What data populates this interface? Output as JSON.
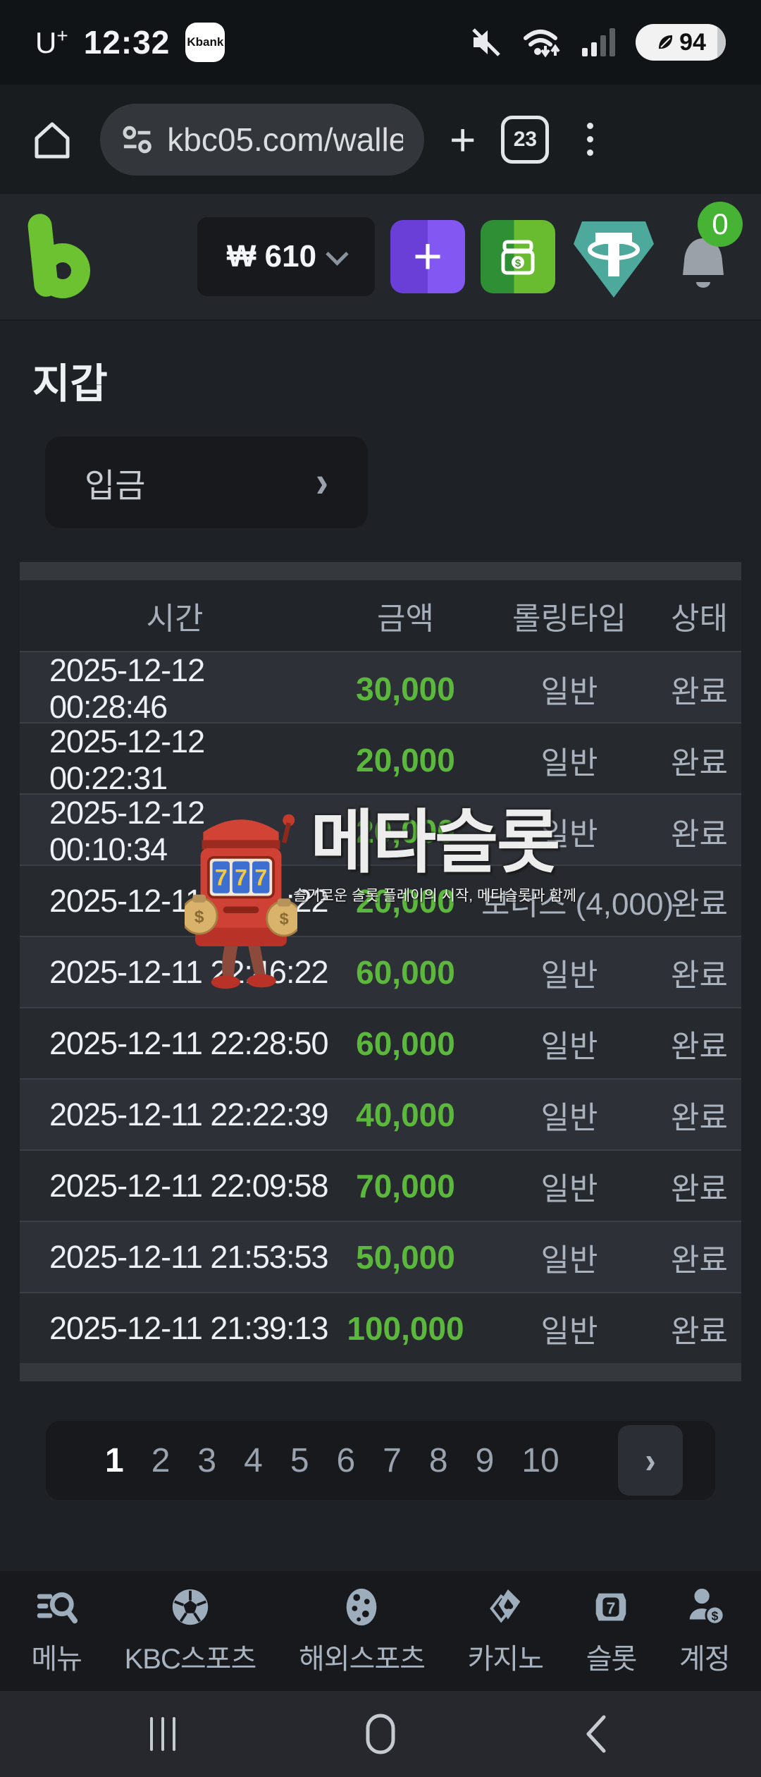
{
  "status_bar": {
    "carrier": "U+",
    "time": "12:32",
    "app_badge": "Kbank",
    "battery_percent": "94"
  },
  "browser": {
    "url": "kbc05.com/walle",
    "tab_count": "23",
    "new_tab_glyph": "+"
  },
  "site_header": {
    "balance_amount": "₩ 610",
    "plus_button_glyph": "+",
    "notification_badge": "0"
  },
  "wallet": {
    "page_title": "지갑",
    "deposit_label": "입금",
    "deposit_chevron": "›"
  },
  "table": {
    "headers": [
      "시간",
      "금액",
      "롤링타입",
      "상태"
    ],
    "rows": [
      {
        "time": "2025-12-12 00:28:46",
        "amount": "30,000",
        "type": "일반",
        "status": "완료"
      },
      {
        "time": "2025-12-12 00:22:31",
        "amount": "20,000",
        "type": "일반",
        "status": "완료"
      },
      {
        "time": "2025-12-12 00:10:34",
        "amount": "20,000",
        "type": "일반",
        "status": "완료"
      },
      {
        "time": "2025-12-11 23:01:22",
        "amount": "20,000",
        "type": "보너스 (4,000)",
        "status": "완료"
      },
      {
        "time": "2025-12-11 22:46:22",
        "amount": "60,000",
        "type": "일반",
        "status": "완료"
      },
      {
        "time": "2025-12-11 22:28:50",
        "amount": "60,000",
        "type": "일반",
        "status": "완료"
      },
      {
        "time": "2025-12-11 22:22:39",
        "amount": "40,000",
        "type": "일반",
        "status": "완료"
      },
      {
        "time": "2025-12-11 22:09:58",
        "amount": "70,000",
        "type": "일반",
        "status": "완료"
      },
      {
        "time": "2025-12-11 21:53:53",
        "amount": "50,000",
        "type": "일반",
        "status": "완료"
      },
      {
        "time": "2025-12-11 21:39:13",
        "amount": "100,000",
        "type": "일반",
        "status": "완료"
      }
    ]
  },
  "watermark": {
    "brand": "메타슬롯",
    "tagline": "슬기로운 슬롯 플레이의 시작, 메타슬롯과 함께",
    "slot_display": "777"
  },
  "pagination": {
    "pages": [
      "1",
      "2",
      "3",
      "4",
      "5",
      "6",
      "7",
      "8",
      "9",
      "10"
    ],
    "active_page": "1",
    "next_glyph": "›"
  },
  "bottom_nav": {
    "items": [
      {
        "label": "메뉴"
      },
      {
        "label": "KBC스포츠"
      },
      {
        "label": "해외스포츠"
      },
      {
        "label": "카지노"
      },
      {
        "label": "슬롯"
      },
      {
        "label": "계정"
      }
    ]
  },
  "colors": {
    "amount_green": "#5cb83c",
    "logo_green": "#6cc230",
    "badge_green": "#46b335",
    "accent_purple": "#7a4ce6",
    "tether_teal": "#4da99b"
  }
}
